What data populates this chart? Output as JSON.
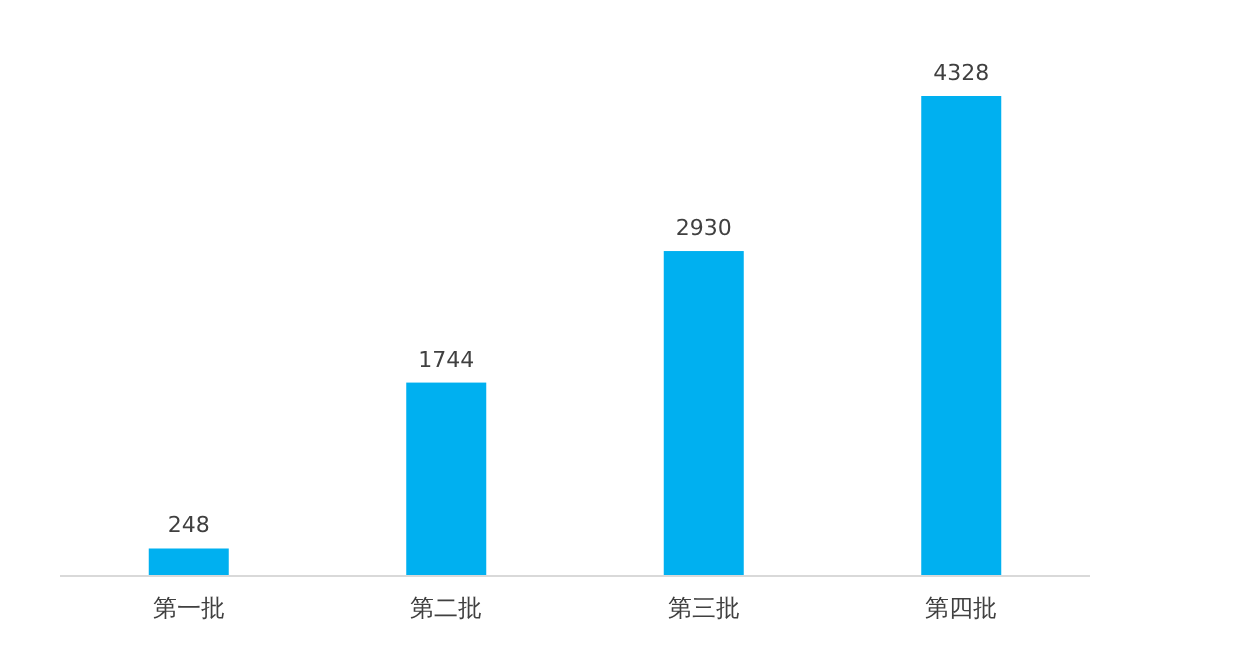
{
  "chart_data": {
    "type": "bar",
    "categories": [
      "第一批",
      "第二批",
      "第三批",
      "第四批"
    ],
    "values": [
      248,
      1744,
      2930,
      4328
    ],
    "color": "#00b0f0",
    "data_labels": true
  }
}
